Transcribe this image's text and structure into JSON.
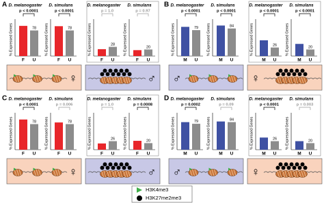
{
  "panels": [
    {
      "label": "A",
      "symbol_side": "right",
      "groups": [
        {
          "state": "active",
          "box_color": "#f9d3bd",
          "sex": "♀",
          "charts": [
            {
              "type": "bar",
              "species": "D. melanogaster",
              "categories": [
                "F",
                "U"
              ],
              "values": [
                92,
                78
              ],
              "colors": [
                "#e8262a",
                "#8c8c8c"
              ],
              "p": "p < 0.0001",
              "p_color": "#000000",
              "ylim": [
                0,
                100
              ]
            },
            {
              "type": "bar",
              "species": "D. simulans",
              "categories": [
                "F",
                "U"
              ],
              "values": [
                91,
                78
              ],
              "colors": [
                "#e8262a",
                "#8c8c8c"
              ],
              "p": "p < 0.0001",
              "p_color": "#000000",
              "ylim": [
                0,
                100
              ]
            }
          ]
        },
        {
          "state": "repressed",
          "box_color": "#c8c8e6",
          "sex": "♂",
          "charts": [
            {
              "type": "bar",
              "species": "D. melanogaster",
              "categories": [
                "F",
                "U"
              ],
              "values": [
                21,
                28
              ],
              "colors": [
                "#e8262a",
                "#8c8c8c"
              ],
              "p": "p = 1.0",
              "p_color": "#9a9a9a",
              "ylim": [
                0,
                100
              ]
            },
            {
              "type": "bar",
              "species": "D. simulans",
              "categories": [
                "F",
                "U"
              ],
              "values": [
                18,
                20
              ],
              "colors": [
                "#e8262a",
                "#8c8c8c"
              ],
              "p": "p = 0.97",
              "p_color": "#9a9a9a",
              "ylim": [
                0,
                100
              ]
            }
          ]
        }
      ]
    },
    {
      "label": "B",
      "symbol_side": "left",
      "groups": [
        {
          "state": "active",
          "box_color": "#c8c8e6",
          "sex": "♂",
          "charts": [
            {
              "type": "bar",
              "species": "D. melanogaster",
              "categories": [
                "M",
                "U"
              ],
              "values": [
                89,
                79
              ],
              "colors": [
                "#3f51a3",
                "#8c8c8c"
              ],
              "p": "p < 0.0001",
              "p_color": "#000000",
              "ylim": [
                0,
                100
              ]
            },
            {
              "type": "bar",
              "species": "D. simulans",
              "categories": [
                "M",
                "U"
              ],
              "values": [
                93,
                84
              ],
              "colors": [
                "#3f51a3",
                "#8c8c8c"
              ],
              "p": "p < 0.0001",
              "p_color": "#000000",
              "ylim": [
                0,
                100
              ]
            }
          ]
        },
        {
          "state": "repressed",
          "box_color": "#f9d3bd",
          "sex": "♀",
          "charts": [
            {
              "type": "bar",
              "species": "D. melanogaster",
              "categories": [
                "M",
                "U"
              ],
              "values": [
                48,
                26
              ],
              "colors": [
                "#3f51a3",
                "#8c8c8c"
              ],
              "p": "p < 0.0001",
              "p_color": "#000000",
              "ylim": [
                0,
                100
              ]
            },
            {
              "type": "bar",
              "species": "D. simulans",
              "categories": [
                "M",
                "U"
              ],
              "values": [
                37,
                20
              ],
              "colors": [
                "#3f51a3",
                "#8c8c8c"
              ],
              "p": "p < 0.0001",
              "p_color": "#000000",
              "ylim": [
                0,
                100
              ]
            }
          ]
        }
      ]
    },
    {
      "label": "C",
      "symbol_side": "right",
      "groups": [
        {
          "state": "active",
          "box_color": "#f9d3bd",
          "sex": "♀",
          "charts": [
            {
              "type": "bar",
              "species": "D. melanogaster",
              "categories": [
                "F",
                "U"
              ],
              "values": [
                92,
                78
              ],
              "colors": [
                "#e8262a",
                "#8c8c8c"
              ],
              "p": "p < 0.0001",
              "p_color": "#000000",
              "ylim": [
                0,
                100
              ]
            },
            {
              "type": "bar",
              "species": "D. simulans",
              "categories": [
                "F",
                "U"
              ],
              "values": [
                83,
                78
              ],
              "colors": [
                "#e8262a",
                "#8c8c8c"
              ],
              "p": "p = 0.006",
              "p_color": "#9a9a9a",
              "ylim": [
                0,
                100
              ]
            }
          ]
        },
        {
          "state": "repressed",
          "box_color": "#c8c8e6",
          "sex": "♂",
          "charts": [
            {
              "type": "bar",
              "species": "D. melanogaster",
              "categories": [
                "F",
                "U"
              ],
              "values": [
                19,
                26
              ],
              "colors": [
                "#e8262a",
                "#8c8c8c"
              ],
              "p": "p = 1.0",
              "p_color": "#9a9a9a",
              "ylim": [
                0,
                100
              ]
            },
            {
              "type": "bar",
              "species": "D. simulans",
              "categories": [
                "F",
                "U"
              ],
              "values": [
                27,
                20
              ],
              "colors": [
                "#e8262a",
                "#8c8c8c"
              ],
              "p": "p = 0.0008",
              "p_color": "#000000",
              "ylim": [
                0,
                100
              ]
            }
          ]
        }
      ]
    },
    {
      "label": "D",
      "symbol_side": "left",
      "groups": [
        {
          "state": "active",
          "box_color": "#c8c8e6",
          "sex": "♂",
          "charts": [
            {
              "type": "bar",
              "species": "D. melanogaster",
              "categories": [
                "M",
                "U"
              ],
              "values": [
                84,
                79
              ],
              "colors": [
                "#3f51a3",
                "#8c8c8c"
              ],
              "p": "p = 0.0002",
              "p_color": "#000000",
              "ylim": [
                0,
                100
              ]
            },
            {
              "type": "bar",
              "species": "D. simulans",
              "categories": [
                "M",
                "U"
              ],
              "values": [
                86,
                84
              ],
              "colors": [
                "#3f51a3",
                "#8c8c8c"
              ],
              "p": "p = 0.09",
              "p_color": "#9a9a9a",
              "ylim": [
                0,
                100
              ]
            }
          ]
        },
        {
          "state": "repressed",
          "box_color": "#f9d3bd",
          "sex": "♀",
          "charts": [
            {
              "type": "bar",
              "species": "D. melanogaster",
              "categories": [
                "M",
                "U"
              ],
              "values": [
                37,
                26
              ],
              "colors": [
                "#3f51a3",
                "#8c8c8c"
              ],
              "p": "p < 0.0001",
              "p_color": "#000000",
              "ylim": [
                0,
                100
              ]
            },
            {
              "type": "bar",
              "species": "D. simulans",
              "categories": [
                "M",
                "U"
              ],
              "values": [
                26,
                20
              ],
              "colors": [
                "#3f51a3",
                "#8c8c8c"
              ],
              "p": "p = 0.003",
              "p_color": "#9a9a9a",
              "ylim": [
                0,
                100
              ]
            }
          ]
        }
      ]
    }
  ],
  "y_label": "% Expressed Genes",
  "legend": [
    {
      "name": "H3K4me3",
      "color": "#3fae49"
    },
    {
      "name": "H3K27me2me3",
      "color": "#000000"
    }
  ]
}
